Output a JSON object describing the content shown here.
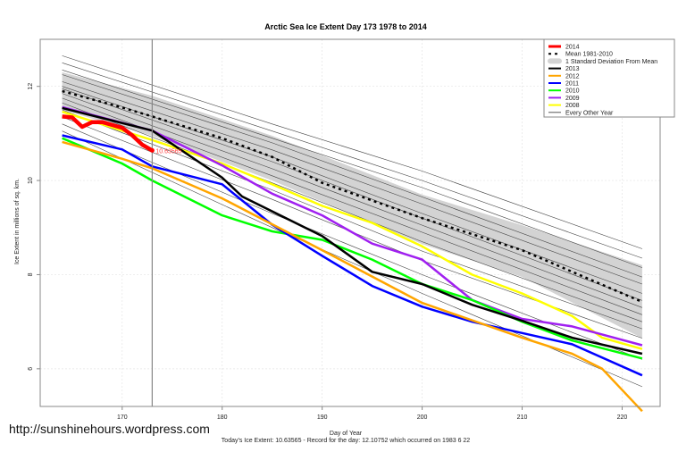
{
  "watermark": "http://sunshinehours.wordpress.com",
  "chart_data": {
    "type": "line",
    "title": "Arctic Sea Ice Extent Day 173 1978 to 2014",
    "xlabel": "Day of Year",
    "ylabel": "Ice Extent in millions of sq. km.",
    "caption": "Today's Ice Extent: 10.63565  - Record for the day: 12.10752 which occurred on 1983 6 22",
    "xlim": [
      161.8,
      223.8
    ],
    "ylim": [
      5.2,
      13.0
    ],
    "xticks": [
      170,
      180,
      190,
      200,
      210,
      220
    ],
    "yticks": [
      6,
      8,
      10,
      12
    ],
    "grid": true,
    "legend_position": "top-right",
    "current_day": 173,
    "current_value_label": "10.63565",
    "legend": [
      {
        "label": "2014",
        "color": "#ff0000",
        "style": "thick"
      },
      {
        "label": "Mean 1981-2010",
        "color": "#000000",
        "style": "dashed"
      },
      {
        "label": "1 Standard Deviation From Mean",
        "color": "#d3d3d3",
        "style": "band"
      },
      {
        "label": "2013",
        "color": "#000000",
        "style": "line"
      },
      {
        "label": "2012",
        "color": "#ffa500",
        "style": "line"
      },
      {
        "label": "2011",
        "color": "#0000ff",
        "style": "line"
      },
      {
        "label": "2010",
        "color": "#00ff00",
        "style": "line"
      },
      {
        "label": "2009",
        "color": "#a020f0",
        "style": "line"
      },
      {
        "label": "2008",
        "color": "#ffff00",
        "style": "line"
      },
      {
        "label": "Every Other Year",
        "color": "#555555",
        "style": "thin"
      }
    ],
    "std_band": {
      "days": [
        164,
        173,
        185,
        200,
        210,
        222
      ],
      "upper": [
        12.3,
        11.8,
        10.95,
        9.7,
        9.05,
        8.2
      ],
      "lower": [
        11.5,
        10.95,
        10.0,
        8.65,
        7.95,
        6.65
      ]
    },
    "mean": {
      "days": [
        164,
        170,
        173,
        180,
        185,
        190,
        200,
        210,
        222
      ],
      "values": [
        11.9,
        11.55,
        11.36,
        10.9,
        10.5,
        9.95,
        9.2,
        8.52,
        7.42
      ]
    },
    "other_years": {
      "days": [
        164,
        185,
        200,
        222
      ],
      "series": [
        [
          12.65,
          11.2,
          10.2,
          8.55
        ],
        [
          12.5,
          11.05,
          10.0,
          8.35
        ],
        [
          12.35,
          10.9,
          9.85,
          8.15
        ],
        [
          12.25,
          10.8,
          9.65,
          7.95
        ],
        [
          12.1,
          10.65,
          9.5,
          7.8
        ],
        [
          12.0,
          10.5,
          9.3,
          7.6
        ],
        [
          11.95,
          10.4,
          9.2,
          7.45
        ],
        [
          11.85,
          10.25,
          9.05,
          7.3
        ],
        [
          11.75,
          10.1,
          8.9,
          7.15
        ],
        [
          11.65,
          9.95,
          8.7,
          7.0
        ],
        [
          11.5,
          9.8,
          8.5,
          6.85
        ],
        [
          11.35,
          9.6,
          8.3,
          6.65
        ],
        [
          11.2,
          9.3,
          8.0,
          6.2
        ],
        [
          11.05,
          9.0,
          7.6,
          5.62
        ]
      ]
    },
    "series": [
      {
        "name": "2008",
        "color": "#ffff00",
        "days": [
          164,
          173,
          180,
          185,
          190,
          195,
          200,
          205,
          210,
          215,
          218,
          222
        ],
        "values": [
          11.46,
          10.86,
          10.36,
          9.92,
          9.46,
          9.1,
          8.6,
          8.0,
          7.6,
          7.12,
          6.66,
          6.42
        ]
      },
      {
        "name": "2009",
        "color": "#a020f0",
        "days": [
          164,
          173,
          180,
          185,
          190,
          195,
          200,
          205,
          210,
          215,
          222
        ],
        "values": [
          11.56,
          11.06,
          10.32,
          9.72,
          9.26,
          8.66,
          8.32,
          7.46,
          7.06,
          6.9,
          6.5
        ]
      },
      {
        "name": "2010",
        "color": "#00ff00",
        "days": [
          164,
          170,
          173,
          180,
          185,
          190,
          195,
          200,
          205,
          210,
          215,
          222
        ],
        "values": [
          10.9,
          10.36,
          10.0,
          9.26,
          8.92,
          8.74,
          8.32,
          7.8,
          7.46,
          7.0,
          6.6,
          6.22
        ]
      },
      {
        "name": "2011",
        "color": "#0000ff",
        "days": [
          164,
          170,
          173,
          180,
          185,
          190,
          195,
          200,
          205,
          210,
          215,
          222
        ],
        "values": [
          10.96,
          10.66,
          10.3,
          9.92,
          9.06,
          8.4,
          7.76,
          7.32,
          7.0,
          6.76,
          6.52,
          5.86
        ]
      },
      {
        "name": "2012",
        "color": "#ffa500",
        "days": [
          164,
          170,
          173,
          180,
          190,
          200,
          210,
          215,
          218,
          222
        ],
        "values": [
          10.82,
          10.46,
          10.26,
          9.62,
          8.52,
          7.4,
          6.66,
          6.32,
          6.0,
          5.1
        ]
      },
      {
        "name": "2013",
        "color": "#000000",
        "days": [
          164,
          173,
          180,
          182,
          190,
          195,
          200,
          205,
          210,
          215,
          222
        ],
        "values": [
          11.54,
          11.06,
          10.06,
          9.66,
          8.82,
          8.06,
          7.8,
          7.36,
          7.02,
          6.66,
          6.32
        ]
      },
      {
        "name": "2014",
        "color": "#ff0000",
        "days": [
          164,
          165,
          166,
          167,
          168,
          170,
          171,
          172,
          173
        ],
        "values": [
          11.36,
          11.34,
          11.14,
          11.24,
          11.24,
          11.12,
          10.96,
          10.76,
          10.64
        ]
      }
    ]
  }
}
